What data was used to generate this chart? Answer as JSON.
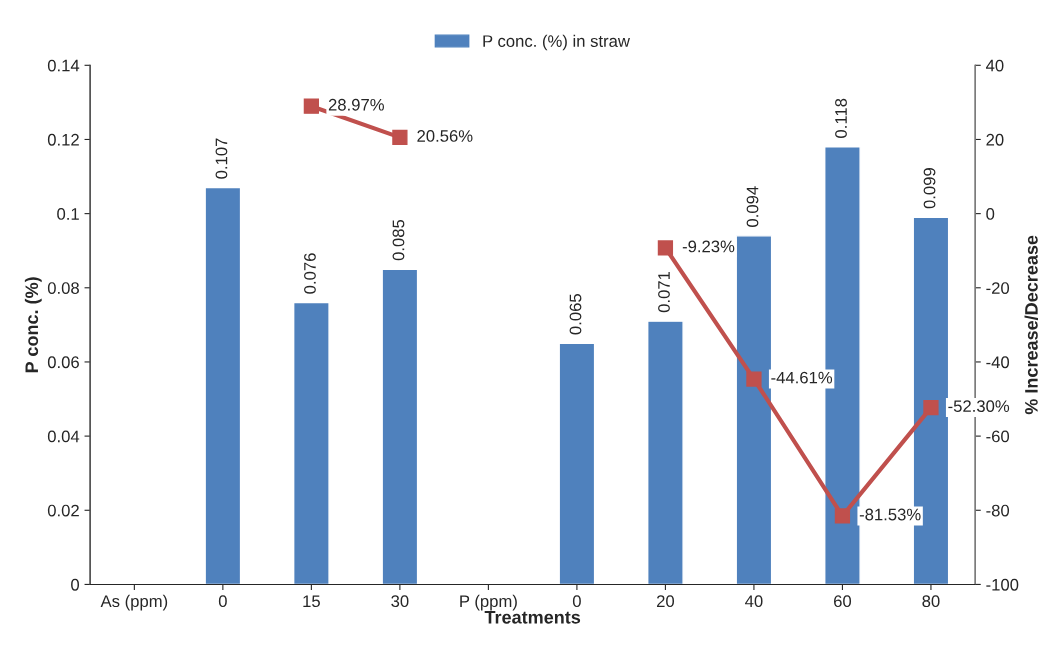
{
  "chart_data": {
    "type": "bar",
    "xlabel": "Treatments",
    "ylabel": "P conc. (%)",
    "y2label": "% Increase/Decrease",
    "categories": [
      "As (ppm)",
      "0",
      "15",
      "30",
      "P (ppm)",
      "0",
      "20",
      "40",
      "60",
      "80"
    ],
    "series": [
      {
        "name": "P conc. (%) in straw",
        "color": "#4f81bd",
        "values": [
          null,
          0.107,
          0.076,
          0.085,
          null,
          0.065,
          0.071,
          0.094,
          0.118,
          0.099
        ],
        "data_labels": true
      },
      {
        "type": "line",
        "axis": "y2",
        "color": "#c0504d",
        "marker": "square",
        "values": [
          null,
          null,
          28.97,
          20.56,
          null,
          null,
          -9.23,
          -44.61,
          -81.53,
          -52.3
        ],
        "value_labels": [
          null,
          null,
          "28.97%",
          "20.56%",
          null,
          null,
          "-9.23%",
          "-44.61%",
          "-81.53%",
          "-52.30%"
        ]
      }
    ],
    "ylim": [
      0,
      0.14
    ],
    "yticks": [
      0,
      0.02,
      0.04,
      0.06,
      0.08,
      0.1,
      0.12,
      0.14
    ],
    "y2lim": [
      -100,
      40
    ],
    "y2ticks": [
      -100,
      -80,
      -60,
      -40,
      -20,
      0,
      20,
      40
    ],
    "grid": false,
    "legend": "top"
  }
}
